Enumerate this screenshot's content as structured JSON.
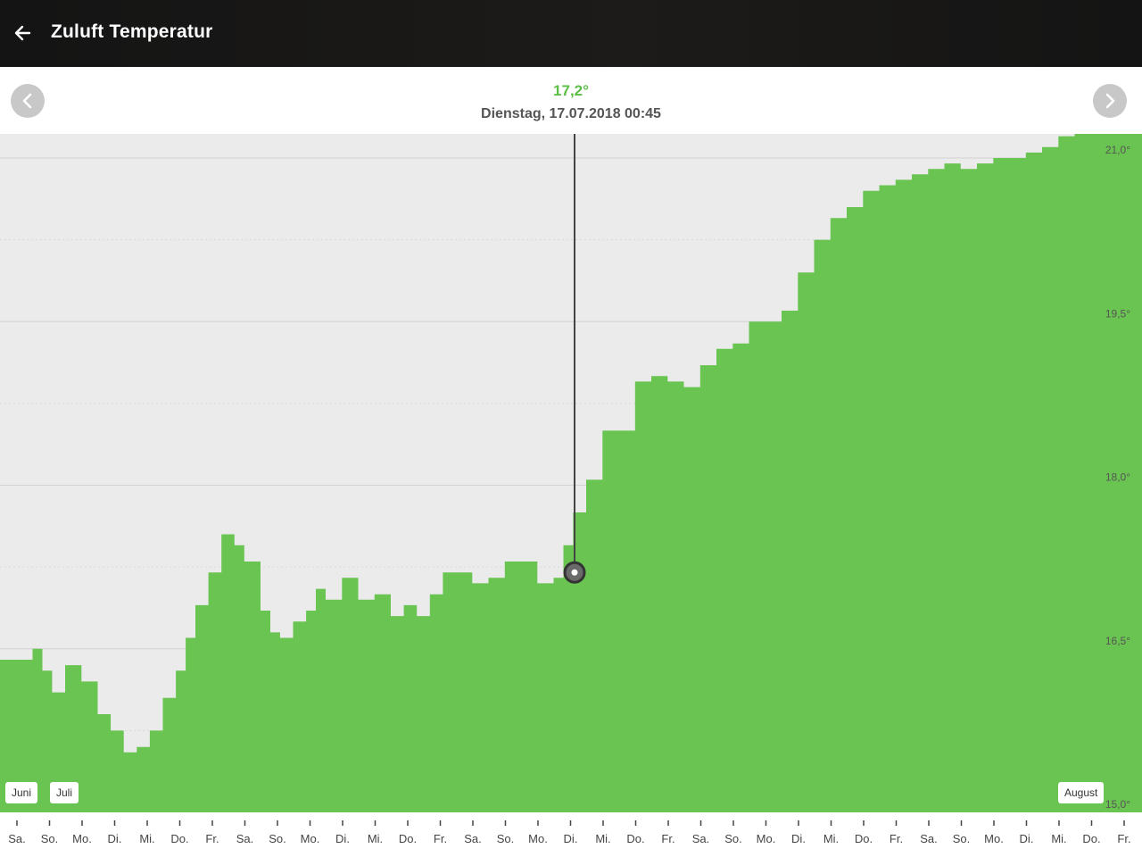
{
  "header": {
    "title": "Zuluft Temperatur"
  },
  "selection": {
    "value": "17,2°",
    "date": "Dienstag, 17.07.2018 00:45"
  },
  "months": [
    "Juni",
    "Juli",
    "August"
  ],
  "colors": {
    "fill": "#6ac452",
    "value_text": "#5cbf45",
    "plot_bg": "#ebebeb"
  },
  "icons": {
    "back": "arrow-left-icon",
    "prev": "chevron-left-icon",
    "next": "chevron-right-icon"
  },
  "chart_data": {
    "type": "area",
    "ylim": [
      15.0,
      21.0
    ],
    "yticks": [
      15.0,
      16.5,
      18.0,
      19.5,
      21.0
    ],
    "ytick_labels": [
      "15,0°",
      "16,5°",
      "18,0°",
      "19,5°",
      "21,0°"
    ],
    "grid": true,
    "x_labels": [
      "Sa.",
      "So.",
      "Mo.",
      "Di.",
      "Mi.",
      "Do.",
      "Fr.",
      "Sa.",
      "So.",
      "Mo.",
      "Di.",
      "Mi.",
      "Do.",
      "Fr.",
      "Sa.",
      "So.",
      "Mo.",
      "Di.",
      "Mi.",
      "Do.",
      "Fr.",
      "Sa.",
      "So.",
      "Mo.",
      "Di.",
      "Mi.",
      "Do.",
      "Fr.",
      "Sa.",
      "So.",
      "Mo.",
      "Di.",
      "Mi.",
      "Do.",
      "Fr."
    ],
    "x": [
      0,
      0.5,
      1,
      1.3,
      1.6,
      2,
      2.5,
      3,
      3.4,
      3.8,
      4.2,
      4.6,
      5,
      5.4,
      5.7,
      6,
      6.4,
      6.8,
      7.2,
      7.5,
      8,
      8.3,
      8.6,
      9,
      9.4,
      9.7,
      10,
      10.5,
      11,
      11.5,
      12,
      12.4,
      12.8,
      13.2,
      13.6,
      14,
      14.5,
      15,
      15.5,
      16,
      16.5,
      17,
      17.3,
      17.6,
      18,
      18.5,
      19,
      19.5,
      20,
      20.5,
      21,
      21.5,
      22,
      22.5,
      23,
      23.5,
      24,
      24.5,
      25,
      25.5,
      26,
      26.5,
      27,
      27.5,
      28,
      28.5,
      29,
      29.5,
      30,
      30.5,
      31,
      31.5,
      32,
      32.5,
      33,
      33.5,
      34,
      34.3
    ],
    "values": [
      16.4,
      16.4,
      16.5,
      16.3,
      16.1,
      16.35,
      16.2,
      15.9,
      15.75,
      15.55,
      15.6,
      15.75,
      16.05,
      16.3,
      16.6,
      16.9,
      17.2,
      17.55,
      17.45,
      17.3,
      16.85,
      16.65,
      16.6,
      16.75,
      16.85,
      17.05,
      16.95,
      17.15,
      16.95,
      17.0,
      16.8,
      16.9,
      16.8,
      17.0,
      17.2,
      17.2,
      17.1,
      17.15,
      17.3,
      17.3,
      17.1,
      17.15,
      17.45,
      17.75,
      18.05,
      18.5,
      18.5,
      18.95,
      19.0,
      18.95,
      18.9,
      19.1,
      19.25,
      19.3,
      19.5,
      19.5,
      19.6,
      19.95,
      20.25,
      20.45,
      20.55,
      20.7,
      20.75,
      20.8,
      20.85,
      20.9,
      20.95,
      20.9,
      20.95,
      21.0,
      21.0,
      21.05,
      21.1,
      21.2,
      21.3,
      21.4,
      21.5,
      21.55
    ],
    "selected_x": 17.0,
    "selected_value": 17.2
  }
}
